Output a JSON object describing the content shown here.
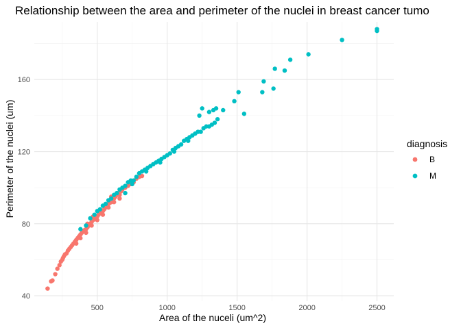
{
  "chart_data": {
    "type": "scatter",
    "title": "Relationship between the area and perimeter of the nuclei in breast cancer tumo",
    "xlabel": "Area of the nuceli (um^2)",
    "ylabel": "Perimeter of the nuclei (um)",
    "xlim": [
      50,
      2620
    ],
    "ylim": [
      37,
      192
    ],
    "x_ticks": [
      500,
      1000,
      1500,
      2000,
      2500
    ],
    "y_ticks": [
      40,
      80,
      120,
      160
    ],
    "grid": true,
    "legend": {
      "title": "diagnosis",
      "position": "right",
      "entries": [
        {
          "label": "B",
          "color": "#F8766D"
        },
        {
          "label": "M",
          "color": "#00BFC4"
        }
      ]
    },
    "series": [
      {
        "name": "B",
        "color": "#F8766D",
        "points": [
          [
            145,
            44
          ],
          [
            170,
            48
          ],
          [
            180,
            48.5
          ],
          [
            200,
            52
          ],
          [
            215,
            55
          ],
          [
            230,
            57
          ],
          [
            240,
            59
          ],
          [
            250,
            60
          ],
          [
            255,
            61
          ],
          [
            262,
            62
          ],
          [
            270,
            63
          ],
          [
            280,
            63.5
          ],
          [
            290,
            65
          ],
          [
            300,
            66
          ],
          [
            310,
            67
          ],
          [
            320,
            68
          ],
          [
            330,
            69
          ],
          [
            340,
            70
          ],
          [
            350,
            71
          ],
          [
            360,
            72
          ],
          [
            370,
            73
          ],
          [
            380,
            74
          ],
          [
            390,
            75
          ],
          [
            400,
            76
          ],
          [
            410,
            76.5
          ],
          [
            420,
            77
          ],
          [
            430,
            78
          ],
          [
            440,
            79
          ],
          [
            450,
            80
          ],
          [
            460,
            81
          ],
          [
            470,
            82
          ],
          [
            480,
            82.5
          ],
          [
            490,
            83
          ],
          [
            500,
            84
          ],
          [
            510,
            85
          ],
          [
            520,
            86
          ],
          [
            530,
            86.5
          ],
          [
            540,
            87
          ],
          [
            550,
            88
          ],
          [
            560,
            89
          ],
          [
            570,
            90
          ],
          [
            580,
            91
          ],
          [
            590,
            91.5
          ],
          [
            600,
            92
          ],
          [
            610,
            93
          ],
          [
            620,
            94
          ],
          [
            630,
            95
          ],
          [
            640,
            96
          ],
          [
            650,
            97
          ],
          [
            660,
            96
          ],
          [
            670,
            98
          ],
          [
            680,
            99
          ],
          [
            700,
            100
          ],
          [
            720,
            101
          ],
          [
            740,
            102
          ],
          [
            760,
            103
          ],
          [
            780,
            105
          ],
          [
            800,
            106
          ],
          [
            820,
            106.5
          ],
          [
            350,
            69
          ],
          [
            380,
            72
          ],
          [
            420,
            75
          ],
          [
            460,
            79
          ],
          [
            500,
            82
          ],
          [
            540,
            85
          ],
          [
            580,
            89
          ],
          [
            620,
            92
          ],
          [
            660,
            94
          ],
          [
            430,
            80
          ],
          [
            470,
            84
          ],
          [
            510,
            87
          ],
          [
            550,
            90
          ],
          [
            600,
            95
          ]
        ]
      },
      {
        "name": "M",
        "color": "#00BFC4",
        "points": [
          [
            380,
            77
          ],
          [
            420,
            79
          ],
          [
            450,
            83
          ],
          [
            480,
            85
          ],
          [
            500,
            87
          ],
          [
            520,
            88
          ],
          [
            540,
            90
          ],
          [
            560,
            91
          ],
          [
            580,
            93
          ],
          [
            600,
            94
          ],
          [
            620,
            96
          ],
          [
            640,
            97
          ],
          [
            660,
            99
          ],
          [
            680,
            100
          ],
          [
            700,
            101
          ],
          [
            720,
            103
          ],
          [
            740,
            104
          ],
          [
            760,
            104
          ],
          [
            780,
            106
          ],
          [
            800,
            108
          ],
          [
            820,
            109
          ],
          [
            840,
            110
          ],
          [
            860,
            111
          ],
          [
            880,
            112
          ],
          [
            900,
            113
          ],
          [
            920,
            114
          ],
          [
            940,
            115
          ],
          [
            960,
            116
          ],
          [
            980,
            117
          ],
          [
            1000,
            118
          ],
          [
            1020,
            119
          ],
          [
            1040,
            121
          ],
          [
            1060,
            122
          ],
          [
            1080,
            123
          ],
          [
            1100,
            124
          ],
          [
            1120,
            126
          ],
          [
            1140,
            127
          ],
          [
            1160,
            128
          ],
          [
            1180,
            129
          ],
          [
            1200,
            130
          ],
          [
            1220,
            131
          ],
          [
            1240,
            131
          ],
          [
            1260,
            133
          ],
          [
            1280,
            134
          ],
          [
            1300,
            134
          ],
          [
            1320,
            135
          ],
          [
            1340,
            136
          ],
          [
            1360,
            138
          ],
          [
            1250,
            144
          ],
          [
            1300,
            142
          ],
          [
            1350,
            144
          ],
          [
            1400,
            143
          ],
          [
            1480,
            148
          ],
          [
            1510,
            153
          ],
          [
            1550,
            141
          ],
          [
            1680,
            153
          ],
          [
            1690,
            159
          ],
          [
            1760,
            155
          ],
          [
            1770,
            166
          ],
          [
            1840,
            165
          ],
          [
            1880,
            171
          ],
          [
            2010,
            174
          ],
          [
            2250,
            182
          ],
          [
            2500,
            188
          ],
          [
            2500,
            187
          ],
          [
            700,
            97
          ],
          [
            750,
            102
          ],
          [
            850,
            109
          ],
          [
            950,
            114
          ],
          [
            1050,
            120
          ],
          [
            1150,
            126
          ],
          [
            1230,
            140
          ],
          [
            1330,
            143
          ]
        ]
      }
    ]
  }
}
